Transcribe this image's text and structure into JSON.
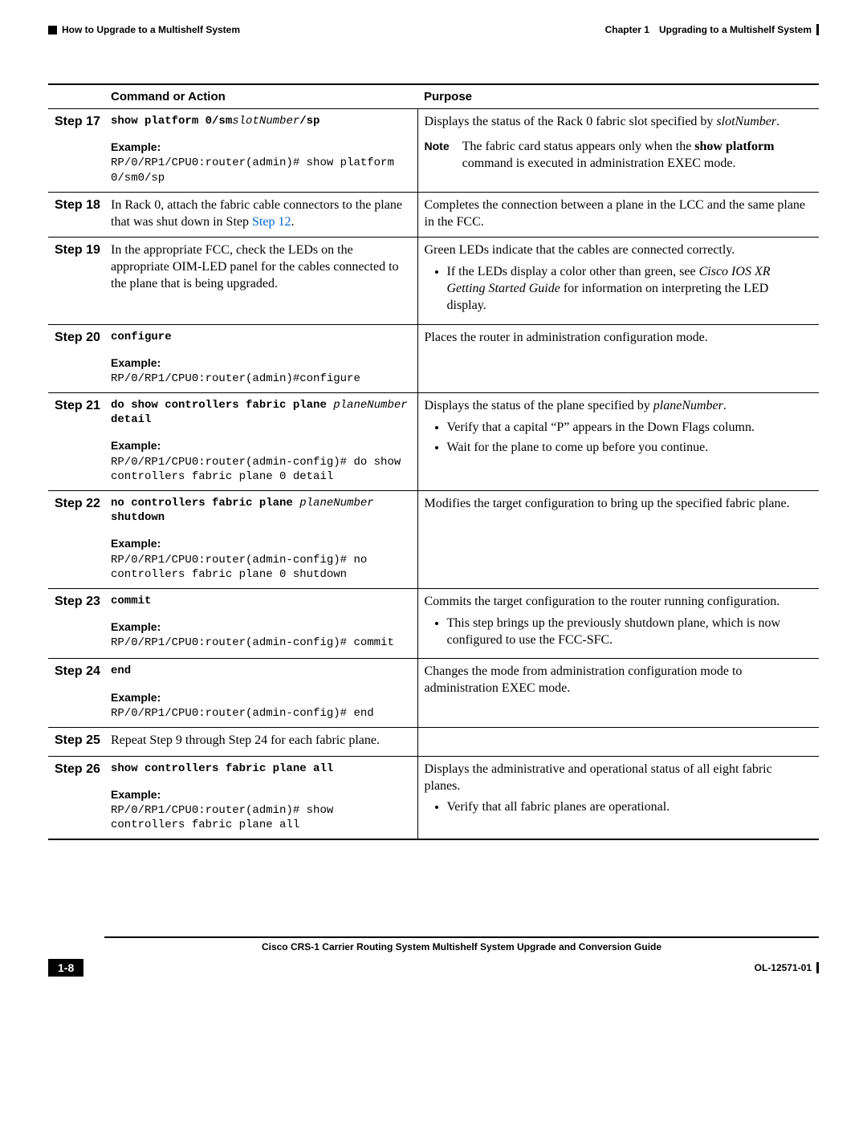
{
  "header": {
    "chapter": "Chapter 1 Upgrading to a Multishelf System",
    "section": "How to Upgrade to a Multishelf System"
  },
  "table": {
    "col_command": "Command or Action",
    "col_purpose": "Purpose",
    "rows": [
      {
        "step": "Step 17",
        "cmd_parts": [
          "show platform 0/sm",
          "slotNumber",
          "/sp"
        ],
        "example_label": "Example:",
        "example": "RP/0/RP1/CPU0:router(admin)# show platform 0/sm0/sp",
        "purpose_main": [
          "Displays the status of the Rack 0 fabric slot specified by ",
          "slotNumber",
          "."
        ],
        "note_label": "Note",
        "note_parts": [
          "The fabric card status appears only when the ",
          "show platform",
          " command is executed in administration EXEC mode."
        ]
      },
      {
        "step": "Step 18",
        "action_parts": [
          "In Rack 0, attach the fabric cable connectors to the plane that was shut down in Step ",
          "Step 12",
          "."
        ],
        "purpose_plain": "Completes the connection between a plane in the LCC and the same plane in the FCC."
      },
      {
        "step": "Step 19",
        "action_plain": "In the appropriate FCC, check the LEDs on the appropriate OIM-LED panel for the cables connected to the plane that is being upgraded.",
        "purpose_plain": "Green LEDs indicate that the cables are connected correctly.",
        "bullets_rich": [
          [
            "If the LEDs display a color other than green, see ",
            "Cisco IOS XR Getting Started Guide",
            " for information on interpreting the LED display."
          ]
        ]
      },
      {
        "step": "Step 20",
        "cmd_plain": "configure",
        "example_label": "Example:",
        "example": "RP/0/RP1/CPU0:router(admin)#configure",
        "purpose_plain": "Places the router in administration configuration mode."
      },
      {
        "step": "Step 21",
        "cmd_parts": [
          "do show controllers fabric plane ",
          "planeNumber",
          " detail"
        ],
        "example_label": "Example:",
        "example": "RP/0/RP1/CPU0:router(admin-config)# do show controllers fabric plane 0 detail",
        "purpose_main": [
          "Displays the status of the plane specified by ",
          "planeNumber",
          "."
        ],
        "bullets": [
          "Verify that a capital “P” appears in the Down Flags column.",
          "Wait for the plane to come up before you continue."
        ]
      },
      {
        "step": "Step 22",
        "cmd_parts": [
          "no controllers fabric plane ",
          "planeNumber",
          " shutdown"
        ],
        "example_label": "Example:",
        "example": "RP/0/RP1/CPU0:router(admin-config)# no controllers fabric plane 0 shutdown",
        "purpose_plain": "Modifies the target configuration to bring up the specified fabric plane."
      },
      {
        "step": "Step 23",
        "cmd_plain": "commit",
        "example_label": "Example:",
        "example": "RP/0/RP1/CPU0:router(admin-config)# commit",
        "purpose_plain": "Commits the target configuration to the router running configuration.",
        "bullets": [
          "This step brings up the previously shutdown plane, which is now configured to use the FCC-SFC."
        ]
      },
      {
        "step": "Step 24",
        "cmd_plain": "end",
        "example_label": "Example:",
        "example": "RP/0/RP1/CPU0:router(admin-config)# end",
        "purpose_plain": "Changes the mode from administration configuration mode to administration EXEC mode."
      },
      {
        "step": "Step 25",
        "action_plain": "Repeat Step 9 through Step 24 for each fabric plane."
      },
      {
        "step": "Step 26",
        "cmd_plain": "show controllers fabric plane all",
        "example_label": "Example:",
        "example": "RP/0/RP1/CPU0:router(admin)# show controllers fabric plane all",
        "purpose_plain": "Displays the administrative and operational status of all eight fabric planes.",
        "bullets": [
          "Verify that all fabric planes are operational."
        ]
      }
    ]
  },
  "footer": {
    "title": "Cisco CRS-1 Carrier Routing System Multishelf System Upgrade and Conversion Guide",
    "page": "1-8",
    "doc_id": "OL-12571-01"
  }
}
